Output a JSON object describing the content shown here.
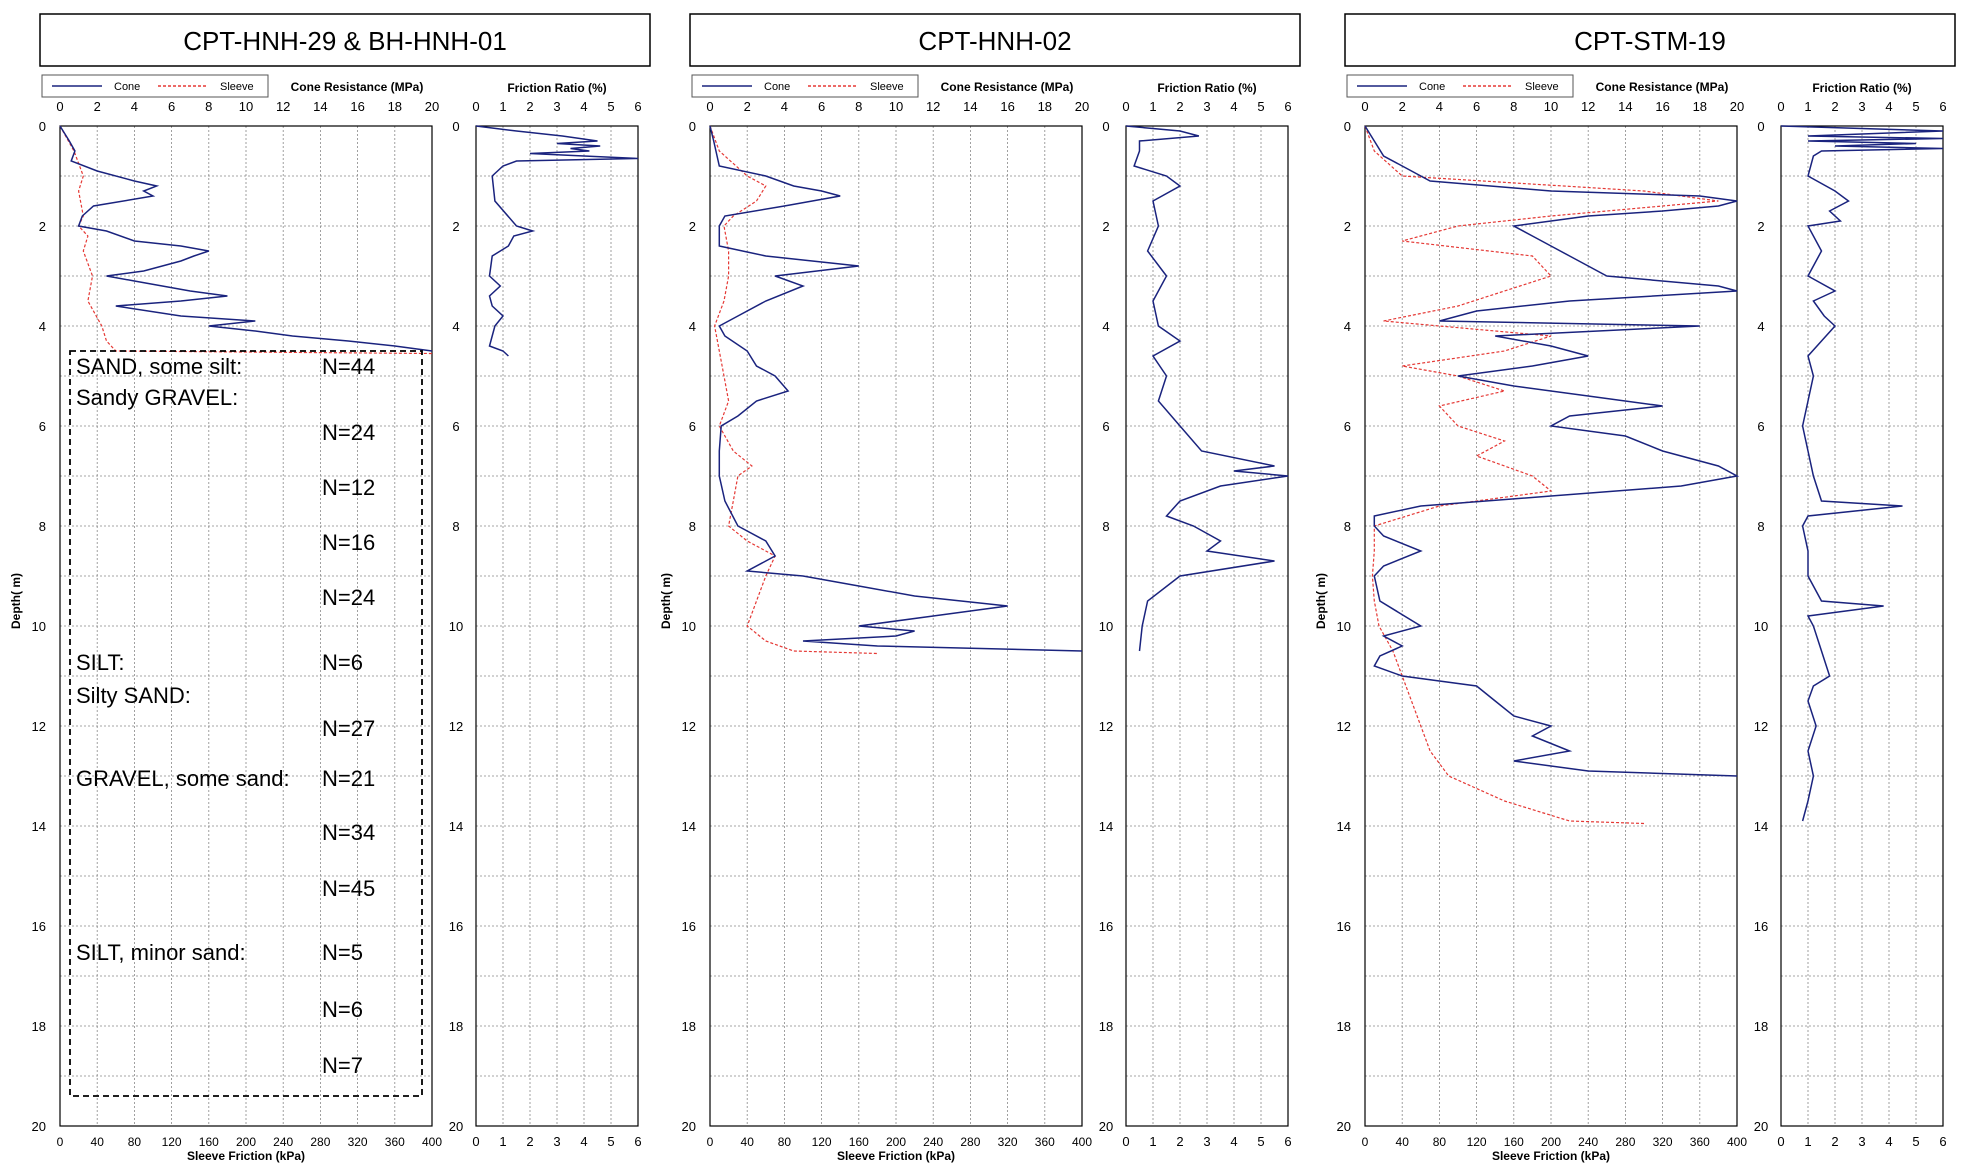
{
  "colors": {
    "cone": "#1a237e",
    "sleeve": "#e53935",
    "grid": "#888888",
    "frame": "#000000"
  },
  "axis_labels": {
    "cone": "Cone Resistance (MPa)",
    "sleeve": "Sleeve Friction (kPa)",
    "depth": "Depth( m)",
    "friction": "Friction Ratio (%)"
  },
  "legend": {
    "cone": "Cone",
    "sleeve": "Sleeve"
  },
  "ticks": {
    "cone": [
      "0",
      "2",
      "4",
      "6",
      "8",
      "10",
      "12",
      "14",
      "16",
      "18",
      "20"
    ],
    "sleeve": [
      "0",
      "40",
      "80",
      "120",
      "160",
      "200",
      "240",
      "280",
      "320",
      "360",
      "400"
    ],
    "friction": [
      "0",
      "1",
      "2",
      "3",
      "4",
      "5",
      "6"
    ],
    "depth": [
      "0",
      "2",
      "4",
      "6",
      "8",
      "10",
      "12",
      "14",
      "16",
      "18",
      "20"
    ]
  },
  "panels": [
    {
      "title": "CPT-HNH-29 & BH-HNH-01"
    },
    {
      "title": "CPT-HNH-02"
    },
    {
      "title": "CPT-STM-19"
    }
  ],
  "borehole_log": [
    {
      "label": "SAND, some silt:",
      "n": "N=44"
    },
    {
      "label": "Sandy GRAVEL:",
      "n": ""
    },
    {
      "label": "",
      "n": "N=24"
    },
    {
      "label": "",
      "n": "N=12"
    },
    {
      "label": "",
      "n": "N=16"
    },
    {
      "label": "",
      "n": "N=24"
    },
    {
      "label": "SILT:",
      "n": "N=6"
    },
    {
      "label": "Silty SAND:",
      "n": ""
    },
    {
      "label": "",
      "n": "N=27"
    },
    {
      "label": "GRAVEL, some sand:",
      "n": "N=21"
    },
    {
      "label": "",
      "n": "N=34"
    },
    {
      "label": "",
      "n": "N=45"
    },
    {
      "label": "SILT, minor sand:",
      "n": "N=5"
    },
    {
      "label": "",
      "n": "N=6"
    },
    {
      "label": "",
      "n": "N=7"
    }
  ],
  "chart_data": [
    {
      "type": "line",
      "title": "CPT-HNH-29 & BH-HNH-01",
      "ylabel": "Depth( m)",
      "ylim": [
        0,
        20
      ],
      "grid": true,
      "legend_position": "top-left",
      "cone_resistance_MPa": {
        "xlim": [
          0,
          20
        ],
        "depth": [
          0,
          0.3,
          0.5,
          0.7,
          0.9,
          1.1,
          1.2,
          1.3,
          1.4,
          1.6,
          1.8,
          2.0,
          2.1,
          2.3,
          2.4,
          2.5,
          2.6,
          2.7,
          2.9,
          3.0,
          3.1,
          3.3,
          3.4,
          3.5,
          3.6,
          3.8,
          3.9,
          4.0,
          4.1,
          4.2,
          4.3,
          4.4,
          4.5
        ],
        "values": [
          0,
          0.5,
          0.8,
          0.6,
          2.0,
          4.0,
          5.2,
          4.5,
          5.0,
          1.8,
          1.2,
          1.0,
          2.5,
          4.0,
          6.5,
          8.0,
          7.2,
          6.5,
          4.5,
          2.5,
          4.0,
          7.0,
          9.0,
          6.5,
          3.0,
          6.5,
          10.5,
          8.0,
          10.5,
          12.5,
          15.5,
          18.0,
          20.0
        ]
      },
      "sleeve_friction_kPa": {
        "xlim": [
          0,
          400
        ],
        "depth": [
          0,
          0.5,
          1.0,
          1.3,
          1.8,
          2.0,
          2.2,
          2.5,
          3.0,
          3.5,
          4.0,
          4.3,
          4.5,
          4.55
        ],
        "values": [
          0,
          15,
          25,
          20,
          25,
          20,
          30,
          25,
          35,
          30,
          45,
          50,
          60,
          400
        ]
      },
      "friction_ratio_pct": {
        "xlim": [
          0,
          6
        ],
        "depth": [
          0,
          0.1,
          0.2,
          0.3,
          0.35,
          0.4,
          0.45,
          0.5,
          0.55,
          0.6,
          0.65,
          0.7,
          0.8,
          1.0,
          1.5,
          2.0,
          2.1,
          2.2,
          2.4,
          2.6,
          3.0,
          3.2,
          3.4,
          3.6,
          3.8,
          4.0,
          4.2,
          4.4,
          4.5,
          4.6
        ],
        "values": [
          0,
          1.5,
          3.2,
          4.5,
          3.0,
          4.6,
          3.5,
          4.2,
          2.0,
          4.0,
          6.0,
          1.5,
          1.0,
          0.6,
          0.7,
          1.5,
          2.1,
          1.4,
          1.2,
          0.6,
          0.5,
          0.9,
          0.5,
          0.6,
          1.0,
          0.7,
          0.6,
          0.5,
          1.0,
          1.2
        ]
      },
      "borehole_box_depth": [
        4.5,
        19.4
      ]
    },
    {
      "type": "line",
      "title": "CPT-HNH-02",
      "ylabel": "Depth( m)",
      "ylim": [
        0,
        20
      ],
      "grid": true,
      "legend_position": "top-left",
      "cone_resistance_MPa": {
        "xlim": [
          0,
          20
        ],
        "depth": [
          0,
          0.3,
          0.8,
          1.0,
          1.2,
          1.3,
          1.4,
          1.6,
          1.8,
          2.0,
          2.4,
          2.6,
          2.8,
          3.0,
          3.2,
          3.5,
          3.8,
          4.0,
          4.2,
          4.5,
          4.8,
          5.0,
          5.3,
          5.5,
          5.8,
          6.0,
          6.5,
          7.0,
          7.5,
          8.0,
          8.3,
          8.6,
          8.9,
          9.0,
          9.2,
          9.4,
          9.6,
          9.8,
          10.0,
          10.1,
          10.2,
          10.3,
          10.4,
          10.5
        ],
        "values": [
          0,
          0.2,
          0.5,
          3.0,
          4.5,
          6.0,
          7.0,
          4.0,
          0.8,
          0.5,
          0.5,
          3.0,
          8.0,
          3.5,
          5.0,
          3.0,
          1.5,
          0.5,
          0.8,
          2.0,
          2.5,
          3.5,
          4.2,
          2.5,
          1.5,
          0.6,
          0.5,
          0.5,
          0.8,
          1.5,
          3.0,
          3.5,
          2.0,
          5.0,
          8.0,
          11.0,
          16.0,
          12.0,
          8.0,
          11.0,
          10.0,
          5.0,
          9.0,
          20.0
        ]
      },
      "sleeve_friction_kPa": {
        "xlim": [
          0,
          400
        ],
        "depth": [
          0,
          0.5,
          1.0,
          1.2,
          1.5,
          1.8,
          2.0,
          2.5,
          3.0,
          3.5,
          4.0,
          4.5,
          5.0,
          5.5,
          6.0,
          6.5,
          6.8,
          7.0,
          7.5,
          8.0,
          8.3,
          8.6,
          9.0,
          9.5,
          10.0,
          10.3,
          10.5,
          10.55
        ],
        "values": [
          0,
          10,
          40,
          60,
          50,
          25,
          15,
          20,
          20,
          15,
          5,
          10,
          15,
          20,
          10,
          25,
          45,
          30,
          25,
          20,
          40,
          70,
          60,
          50,
          40,
          60,
          90,
          180
        ]
      },
      "friction_ratio_pct": {
        "xlim": [
          0,
          6
        ],
        "depth": [
          0,
          0.1,
          0.2,
          0.3,
          0.5,
          0.8,
          1.0,
          1.2,
          1.5,
          2.0,
          2.5,
          3.0,
          3.5,
          4.0,
          4.3,
          4.6,
          5.0,
          5.5,
          6.0,
          6.5,
          6.8,
          6.9,
          7.0,
          7.2,
          7.5,
          7.8,
          8.0,
          8.3,
          8.5,
          8.7,
          9.0,
          9.5,
          10.0,
          10.5
        ],
        "values": [
          0,
          2.0,
          2.7,
          0.5,
          0.5,
          0.3,
          1.5,
          2.0,
          1.0,
          1.2,
          0.8,
          1.5,
          1.0,
          1.2,
          2.0,
          1.0,
          1.5,
          1.2,
          2.0,
          2.8,
          5.5,
          4.0,
          6.0,
          3.5,
          2.0,
          1.5,
          2.5,
          3.5,
          3.0,
          5.5,
          2.0,
          0.8,
          0.6,
          0.5
        ]
      }
    },
    {
      "type": "line",
      "title": "CPT-STM-19",
      "ylabel": "Depth( m)",
      "ylim": [
        0,
        20
      ],
      "grid": true,
      "legend_position": "top-left",
      "cone_resistance_MPa": {
        "xlim": [
          0,
          20
        ],
        "depth": [
          0,
          0.3,
          0.6,
          0.9,
          1.1,
          1.3,
          1.4,
          1.5,
          1.6,
          1.7,
          1.8,
          1.9,
          2.0,
          2.2,
          2.4,
          2.6,
          2.8,
          3.0,
          3.2,
          3.3,
          3.5,
          3.7,
          3.9,
          4.0,
          4.2,
          4.4,
          4.6,
          4.8,
          5.0,
          5.2,
          5.4,
          5.6,
          5.8,
          6.0,
          6.2,
          6.5,
          6.8,
          7.0,
          7.2,
          7.4,
          7.6,
          7.8,
          8.0,
          8.2,
          8.5,
          8.8,
          9.0,
          9.5,
          10.0,
          10.2,
          10.4,
          10.6,
          10.8,
          11.0,
          11.2,
          11.5,
          11.8,
          12.0,
          12.2,
          12.5,
          12.7,
          12.9,
          13.0
        ],
        "values": [
          0,
          0.5,
          1.0,
          2.5,
          3.5,
          10.0,
          18.0,
          20.0,
          19.0,
          16.0,
          12.0,
          10.0,
          8.0,
          9.0,
          10.0,
          11.0,
          12.0,
          13.0,
          19.0,
          20.0,
          11.0,
          6.0,
          4.0,
          18.0,
          7.0,
          10.0,
          12.0,
          9.0,
          5.0,
          8.0,
          12.0,
          16.0,
          11.0,
          10.0,
          14.0,
          16.0,
          19.0,
          20.0,
          17.0,
          10.0,
          3.0,
          0.5,
          0.5,
          1.0,
          3.0,
          1.0,
          0.5,
          0.8,
          3.0,
          1.0,
          2.0,
          0.8,
          0.5,
          2.0,
          6.0,
          7.0,
          8.0,
          10.0,
          9.0,
          11.0,
          8.0,
          12.0,
          20.0
        ]
      },
      "sleeve_friction_kPa": {
        "xlim": [
          0,
          400
        ],
        "depth": [
          0,
          0.5,
          1.0,
          1.3,
          1.5,
          1.8,
          2.0,
          2.3,
          2.6,
          3.0,
          3.3,
          3.6,
          3.9,
          4.2,
          4.5,
          4.8,
          5.0,
          5.3,
          5.6,
          6.0,
          6.3,
          6.6,
          7.0,
          7.3,
          7.6,
          8.0,
          8.5,
          9.0,
          9.5,
          10.0,
          10.5,
          11.0,
          11.5,
          12.0,
          12.5,
          13.0,
          13.5,
          13.9,
          13.95
        ],
        "values": [
          0,
          10,
          40,
          300,
          380,
          200,
          100,
          40,
          180,
          200,
          150,
          100,
          20,
          200,
          150,
          40,
          100,
          150,
          80,
          100,
          150,
          120,
          180,
          200,
          80,
          10,
          10,
          8,
          10,
          15,
          30,
          40,
          50,
          60,
          70,
          90,
          150,
          220,
          300
        ]
      },
      "friction_ratio_pct": {
        "xlim": [
          0,
          6
        ],
        "depth": [
          0,
          0.1,
          0.2,
          0.25,
          0.3,
          0.35,
          0.4,
          0.45,
          0.5,
          0.6,
          1.0,
          1.3,
          1.5,
          1.7,
          1.9,
          2.0,
          2.5,
          3.0,
          3.3,
          3.5,
          3.8,
          4.0,
          4.3,
          4.6,
          5.0,
          5.5,
          6.0,
          6.5,
          7.0,
          7.5,
          7.6,
          7.8,
          8.0,
          8.5,
          9.0,
          9.5,
          9.6,
          9.8,
          10.0,
          10.5,
          11.0,
          11.2,
          11.5,
          12.0,
          12.5,
          13.0,
          13.5,
          13.9
        ],
        "values": [
          0,
          6.0,
          1.0,
          6.0,
          1.0,
          5.0,
          2.0,
          6.0,
          1.5,
          1.2,
          1.0,
          2.0,
          2.5,
          1.8,
          2.2,
          1.0,
          1.5,
          1.0,
          2.0,
          1.2,
          1.6,
          2.0,
          1.5,
          1.0,
          1.2,
          1.0,
          0.8,
          1.0,
          1.2,
          1.5,
          4.5,
          1.0,
          0.8,
          1.0,
          1.0,
          1.5,
          3.8,
          1.0,
          1.2,
          1.5,
          1.8,
          1.2,
          1.0,
          1.3,
          1.0,
          1.2,
          1.0,
          0.8
        ]
      }
    }
  ]
}
